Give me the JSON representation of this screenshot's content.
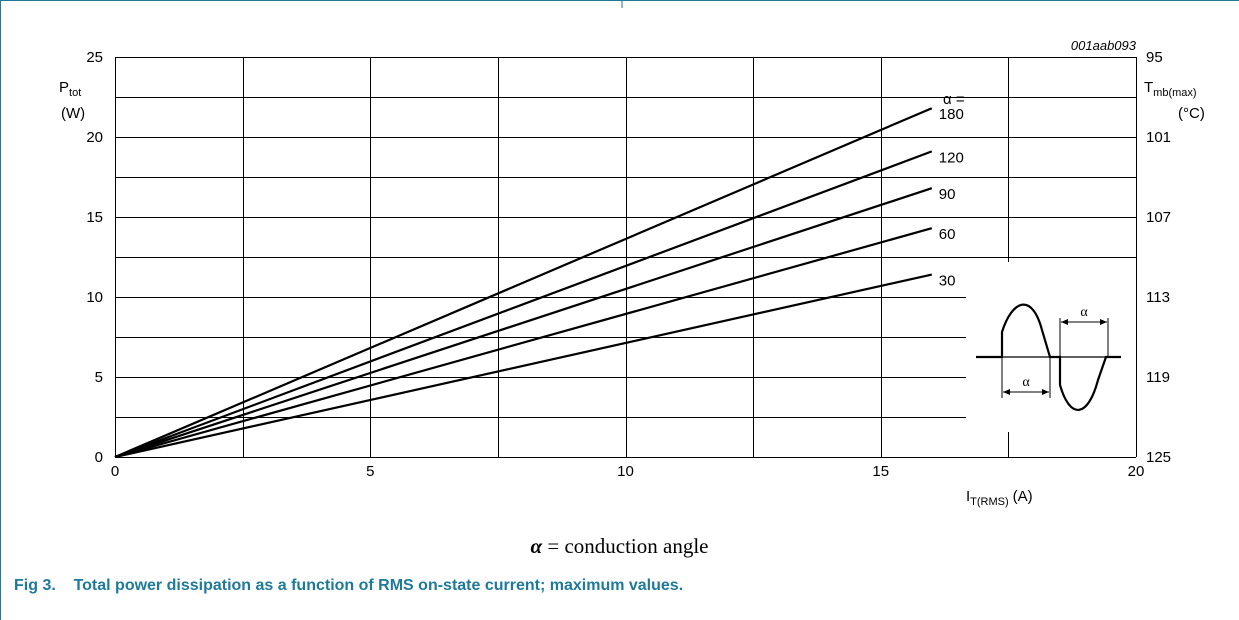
{
  "figure": {
    "code": "001aab093",
    "caption_label": "Fig 3.",
    "caption_text": "Total power dissipation as a function of RMS on-state current; maximum values.",
    "note_symbol": "α",
    "note_text": " = conduction angle"
  },
  "colors": {
    "caption": "#1f7a99",
    "frame": "#1f7a99",
    "curve": "#000000",
    "grid": "#000000"
  },
  "chart_data": {
    "type": "line",
    "xlabel": "I",
    "xlabel_sub": "T(RMS)",
    "xlabel_unit": "(A)",
    "ylabel": "P",
    "ylabel_sub": "tot",
    "ylabel_unit": "(W)",
    "y2label": "T",
    "y2label_sub": "mb(max)",
    "y2label_unit": "(°C)",
    "xlim": [
      0,
      20
    ],
    "ylim": [
      0,
      25
    ],
    "x_ticks": [
      0,
      5,
      10,
      15,
      20
    ],
    "y_ticks": [
      0,
      5,
      10,
      15,
      20,
      25
    ],
    "y2_ticks": [
      {
        "y": 25,
        "label": "95"
      },
      {
        "y": 20,
        "label": "101"
      },
      {
        "y": 15,
        "label": "107"
      },
      {
        "y": 10,
        "label": "113"
      },
      {
        "y": 5,
        "label": "119"
      },
      {
        "y": 0,
        "label": "125"
      }
    ],
    "grid": true,
    "legend_title": "α =",
    "series": [
      {
        "name": "180",
        "x": [
          0,
          16
        ],
        "y": [
          0,
          21.8
        ]
      },
      {
        "name": "120",
        "x": [
          0,
          16
        ],
        "y": [
          0,
          19.1
        ]
      },
      {
        "name": "90",
        "x": [
          0,
          16
        ],
        "y": [
          0,
          16.8
        ]
      },
      {
        "name": "60",
        "x": [
          0,
          16
        ],
        "y": [
          0,
          14.3
        ]
      },
      {
        "name": "30",
        "x": [
          0,
          16
        ],
        "y": [
          0,
          11.4
        ]
      }
    ],
    "inset_label": "α"
  }
}
